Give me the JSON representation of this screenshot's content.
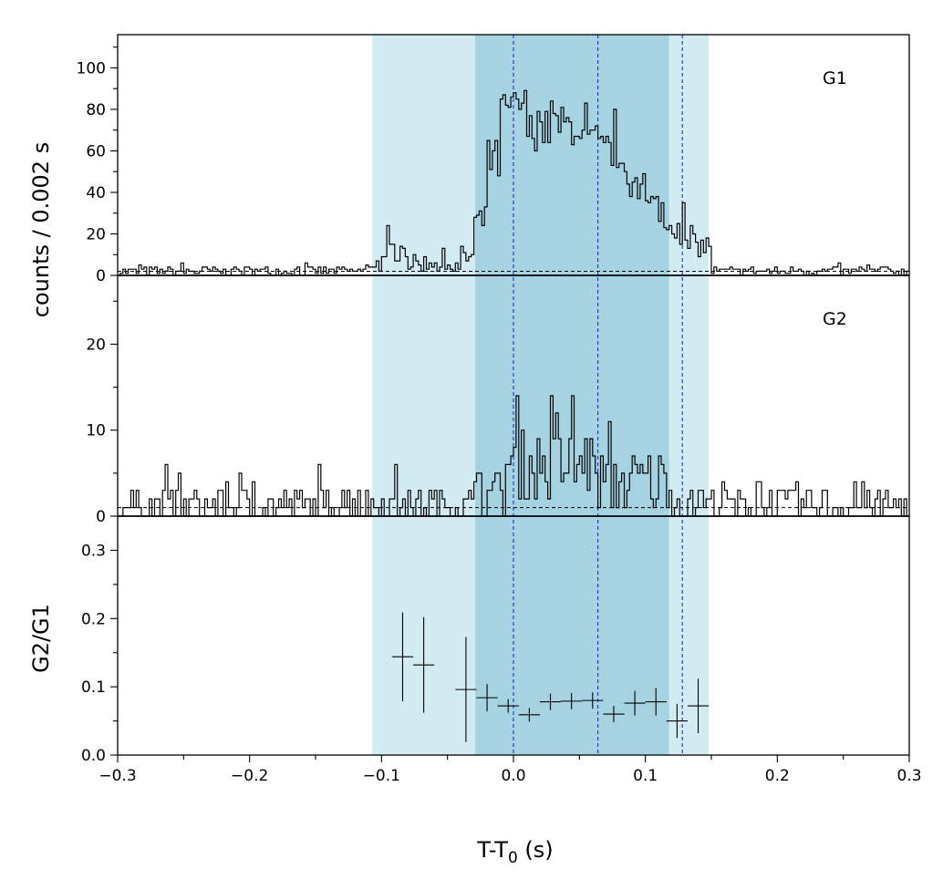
{
  "chart_data": {
    "type": "histogram",
    "xlabel_main": "T-T",
    "xlabel_sub": "0",
    "xlabel_unit": " (s)",
    "ylabel_counts": "counts /  0.002 s",
    "ylabel_ratio": "G2/G1",
    "xlim": [
      -0.3,
      0.3
    ],
    "xticks": [
      -0.3,
      -0.2,
      -0.1,
      0.0,
      0.1,
      0.2,
      0.3
    ],
    "xtick_labels": [
      "−0.3",
      "−0.2",
      "−0.1",
      "0.0",
      "0.1",
      "0.2",
      "0.3"
    ],
    "bin_width_s": 0.002,
    "shaded_regions": [
      {
        "x0": -0.107,
        "x1": 0.148,
        "color": "#d3ebf3"
      },
      {
        "x0": -0.029,
        "x1": 0.118,
        "color": "#a6d3e2"
      }
    ],
    "vertical_lines": [
      0.0,
      0.064,
      0.128
    ],
    "vertical_line_color": "#1f2fd6",
    "panels": [
      {
        "label": "G1",
        "ylim": [
          0,
          116
        ],
        "yticks": [
          0,
          20,
          40,
          60,
          80,
          100
        ],
        "yminor_step": 10,
        "background": 2,
        "series": [
          {
            "x0": -0.3,
            "x1": -0.11,
            "level": 2,
            "noise": 1.5
          },
          {
            "x0": -0.11,
            "x1": -0.095,
            "level": 6,
            "noise": 3
          },
          {
            "x0": -0.095,
            "x1": -0.08,
            "level": 12,
            "noise": 4
          },
          {
            "x0": -0.08,
            "x1": -0.06,
            "level": 6,
            "noise": 3
          },
          {
            "x0": -0.06,
            "x1": -0.04,
            "level": 4,
            "noise": 3
          },
          {
            "x0": -0.04,
            "x1": -0.03,
            "level": 9,
            "noise": 4
          },
          {
            "x0": -0.03,
            "x1": -0.02,
            "level": 25,
            "noise": 6
          },
          {
            "x0": -0.02,
            "x1": -0.01,
            "level": 55,
            "noise": 8
          },
          {
            "x0": -0.01,
            "x1": 0.0,
            "level": 80,
            "noise": 6
          },
          {
            "x0": 0.0,
            "x1": 0.01,
            "level": 82,
            "noise": 6
          },
          {
            "x0": 0.01,
            "x1": 0.03,
            "level": 70,
            "noise": 7
          },
          {
            "x0": 0.03,
            "x1": 0.05,
            "level": 72,
            "noise": 7
          },
          {
            "x0": 0.05,
            "x1": 0.065,
            "level": 64,
            "noise": 7
          },
          {
            "x0": 0.065,
            "x1": 0.08,
            "level": 60,
            "noise": 7
          },
          {
            "x0": 0.08,
            "x1": 0.1,
            "level": 45,
            "noise": 7
          },
          {
            "x0": 0.1,
            "x1": 0.115,
            "level": 33,
            "noise": 6
          },
          {
            "x0": 0.115,
            "x1": 0.13,
            "level": 22,
            "noise": 5
          },
          {
            "x0": 0.13,
            "x1": 0.15,
            "level": 14,
            "noise": 4
          },
          {
            "x0": 0.15,
            "x1": 0.3,
            "level": 2,
            "noise": 1.5
          }
        ]
      },
      {
        "label": "G2",
        "ylim": [
          0,
          28
        ],
        "yticks": [
          0,
          10,
          20
        ],
        "yminor_step": 5,
        "background": 1,
        "series": [
          {
            "x0": -0.3,
            "x1": -0.03,
            "level": 1.2,
            "noise": 1.6
          },
          {
            "x0": -0.03,
            "x1": -0.005,
            "level": 2.5,
            "noise": 2
          },
          {
            "x0": -0.005,
            "x1": 0.06,
            "level": 6,
            "noise": 3
          },
          {
            "x0": 0.06,
            "x1": 0.12,
            "level": 4,
            "noise": 2.5
          },
          {
            "x0": 0.12,
            "x1": 0.3,
            "level": 1.2,
            "noise": 1.6
          }
        ]
      },
      {
        "label": "",
        "ylim": [
          0,
          0.35
        ],
        "yticks": [
          0.0,
          0.1,
          0.2,
          0.3
        ],
        "ytick_labels": [
          "0.0",
          "0.1",
          "0.2",
          "0.3"
        ],
        "yminor_step": 0.05,
        "points": [
          {
            "x": -0.084,
            "y": 0.144,
            "xerr": 0.008,
            "yerr": 0.065
          },
          {
            "x": -0.068,
            "y": 0.132,
            "xerr": 0.008,
            "yerr": 0.07
          },
          {
            "x": -0.036,
            "y": 0.096,
            "xerr": 0.008,
            "yerr": 0.077
          },
          {
            "x": -0.02,
            "y": 0.084,
            "xerr": 0.008,
            "yerr": 0.02
          },
          {
            "x": -0.004,
            "y": 0.072,
            "xerr": 0.008,
            "yerr": 0.01
          },
          {
            "x": 0.012,
            "y": 0.059,
            "xerr": 0.008,
            "yerr": 0.01
          },
          {
            "x": 0.028,
            "y": 0.078,
            "xerr": 0.008,
            "yerr": 0.012
          },
          {
            "x": 0.044,
            "y": 0.079,
            "xerr": 0.008,
            "yerr": 0.012
          },
          {
            "x": 0.06,
            "y": 0.08,
            "xerr": 0.008,
            "yerr": 0.012
          },
          {
            "x": 0.076,
            "y": 0.06,
            "xerr": 0.008,
            "yerr": 0.012
          },
          {
            "x": 0.092,
            "y": 0.076,
            "xerr": 0.008,
            "yerr": 0.018
          },
          {
            "x": 0.108,
            "y": 0.078,
            "xerr": 0.008,
            "yerr": 0.02
          },
          {
            "x": 0.124,
            "y": 0.05,
            "xerr": 0.008,
            "yerr": 0.025
          },
          {
            "x": 0.14,
            "y": 0.072,
            "xerr": 0.008,
            "yerr": 0.04
          }
        ]
      }
    ]
  }
}
